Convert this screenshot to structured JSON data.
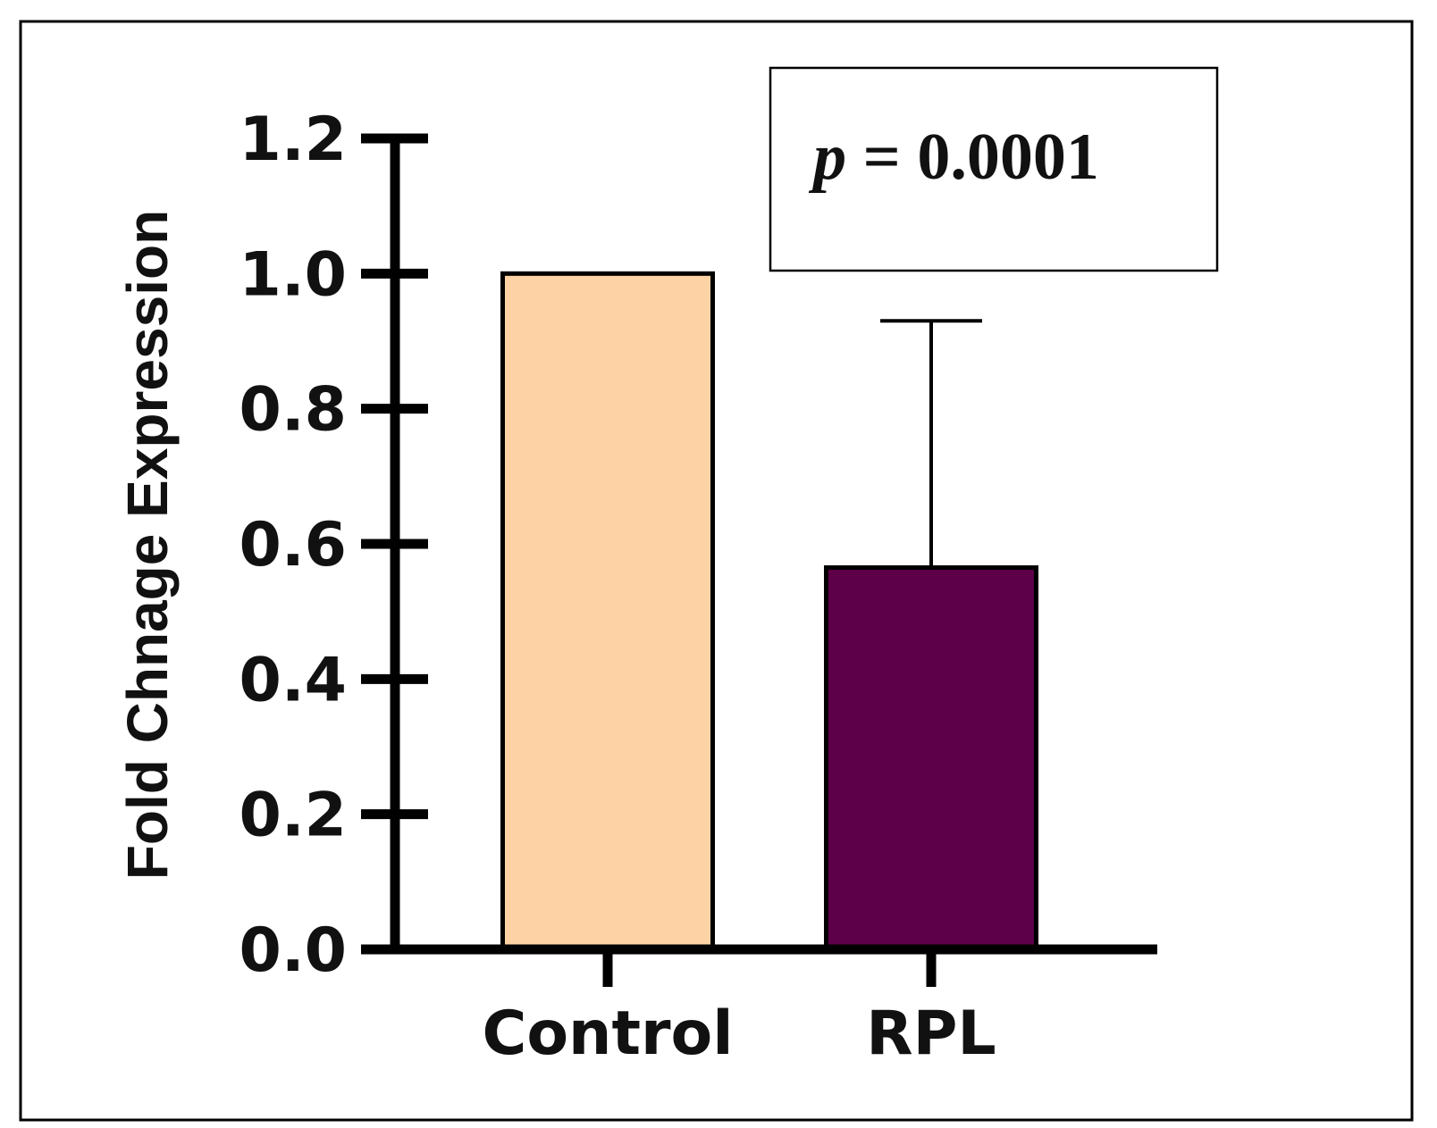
{
  "chart_data": {
    "type": "bar",
    "categories": [
      "Control",
      "RPL"
    ],
    "values": [
      1.0,
      0.565
    ],
    "error_upper": [
      0,
      0.365
    ],
    "colors": [
      "#FDD3A5",
      "#5E0049"
    ],
    "xlabel": "",
    "ylabel": "Fold Chnage Expression",
    "ylim": [
      0,
      1.2
    ],
    "yticks": [
      "0.0",
      "0.2",
      "0.4",
      "0.6",
      "0.8",
      "1.0",
      "1.2"
    ],
    "annotation": {
      "p_symbol": "p",
      "text": " = 0.0001"
    },
    "grid": false,
    "legend": "none"
  }
}
